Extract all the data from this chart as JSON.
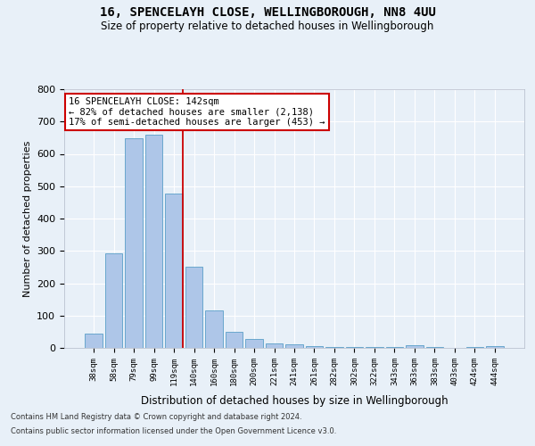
{
  "title1": "16, SPENCELAYH CLOSE, WELLINGBOROUGH, NN8 4UU",
  "title2": "Size of property relative to detached houses in Wellingborough",
  "xlabel": "Distribution of detached houses by size in Wellingborough",
  "ylabel": "Number of detached properties",
  "categories": [
    "38sqm",
    "58sqm",
    "79sqm",
    "99sqm",
    "119sqm",
    "140sqm",
    "160sqm",
    "180sqm",
    "200sqm",
    "221sqm",
    "241sqm",
    "261sqm",
    "282sqm",
    "302sqm",
    "322sqm",
    "343sqm",
    "363sqm",
    "383sqm",
    "403sqm",
    "424sqm",
    "444sqm"
  ],
  "values": [
    45,
    293,
    648,
    660,
    478,
    250,
    115,
    50,
    28,
    15,
    12,
    5,
    3,
    3,
    3,
    3,
    7,
    3,
    1,
    3,
    5
  ],
  "bar_color": "#aec6e8",
  "bar_edge_color": "#5a9fc8",
  "highlight_bar_index": 4,
  "highlight_line_color": "#cc0000",
  "annotation_line1": "16 SPENCELAYH CLOSE: 142sqm",
  "annotation_line2": "← 82% of detached houses are smaller (2,138)",
  "annotation_line3": "17% of semi-detached houses are larger (453) →",
  "annotation_box_facecolor": "#ffffff",
  "annotation_box_edgecolor": "#cc0000",
  "ylim": [
    0,
    800
  ],
  "yticks": [
    0,
    100,
    200,
    300,
    400,
    500,
    600,
    700,
    800
  ],
  "background_color": "#e8f0f8",
  "grid_color": "#ffffff",
  "footer1": "Contains HM Land Registry data © Crown copyright and database right 2024.",
  "footer2": "Contains public sector information licensed under the Open Government Licence v3.0."
}
